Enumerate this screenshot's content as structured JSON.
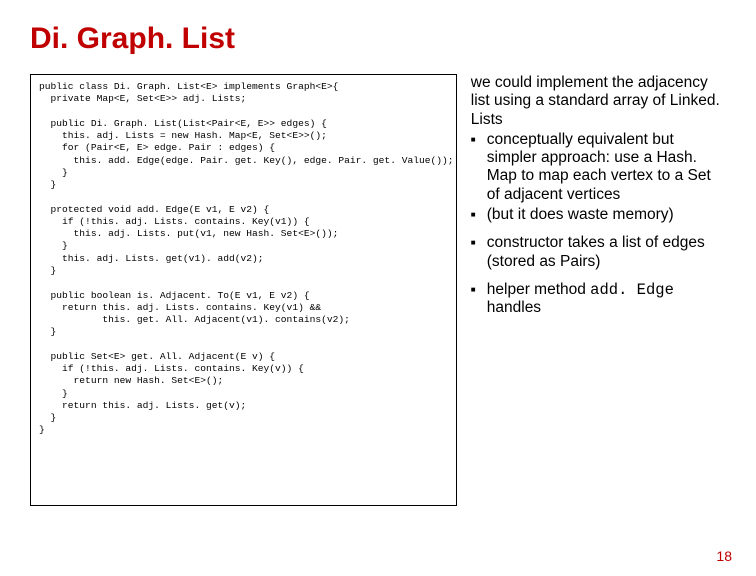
{
  "title": "Di. Graph. List",
  "code": "public class Di. Graph. List<E> implements Graph<E>{\n  private Map<E, Set<E>> adj. Lists;\n\n  public Di. Graph. List(List<Pair<E, E>> edges) {\n    this. adj. Lists = new Hash. Map<E, Set<E>>();\n    for (Pair<E, E> edge. Pair : edges) {\n      this. add. Edge(edge. Pair. get. Key(), edge. Pair. get. Value());\n    }\n  }\n\n  protected void add. Edge(E v1, E v2) {\n    if (!this. adj. Lists. contains. Key(v1)) {\n      this. adj. Lists. put(v1, new Hash. Set<E>());\n    }\n    this. adj. Lists. get(v1). add(v2);\n  }\n\n  public boolean is. Adjacent. To(E v1, E v2) {\n    return this. adj. Lists. contains. Key(v1) &&\n           this. get. All. Adjacent(v1). contains(v2);\n  }\n\n  public Set<E> get. All. Adjacent(E v) {\n    if (!this. adj. Lists. contains. Key(v)) {\n      return new Hash. Set<E>();\n    }\n    return this. adj. Lists. get(v);\n  }\n}",
  "notes": {
    "para1": "we could implement the adjacency list using a standard array of Linked. Lists",
    "sub1a": "conceptually equivalent but simpler approach: use a Hash. Map to map each vertex to a Set of adjacent vertices",
    "sub1b": "(but it does waste memory)",
    "sub2": "constructor takes a list of edges (stored as Pairs)",
    "sub3a": "helper method ",
    "sub3b": "add. Edge",
    "sub3c": " handles"
  },
  "pagenum": "18",
  "colors": {
    "title": "#c00000",
    "pagenum": "#c00000",
    "text": "#000000",
    "border": "#000000",
    "background": "#ffffff"
  },
  "typography": {
    "title_fontsize": 30,
    "body_fontsize": 15.5,
    "code_fontsize": 9.6,
    "code_family": "Courier New",
    "body_family": "Arial"
  },
  "layout": {
    "slide_width": 756,
    "slide_height": 576,
    "code_box_width": 428,
    "code_box_height": 432,
    "notes_width": 256
  }
}
